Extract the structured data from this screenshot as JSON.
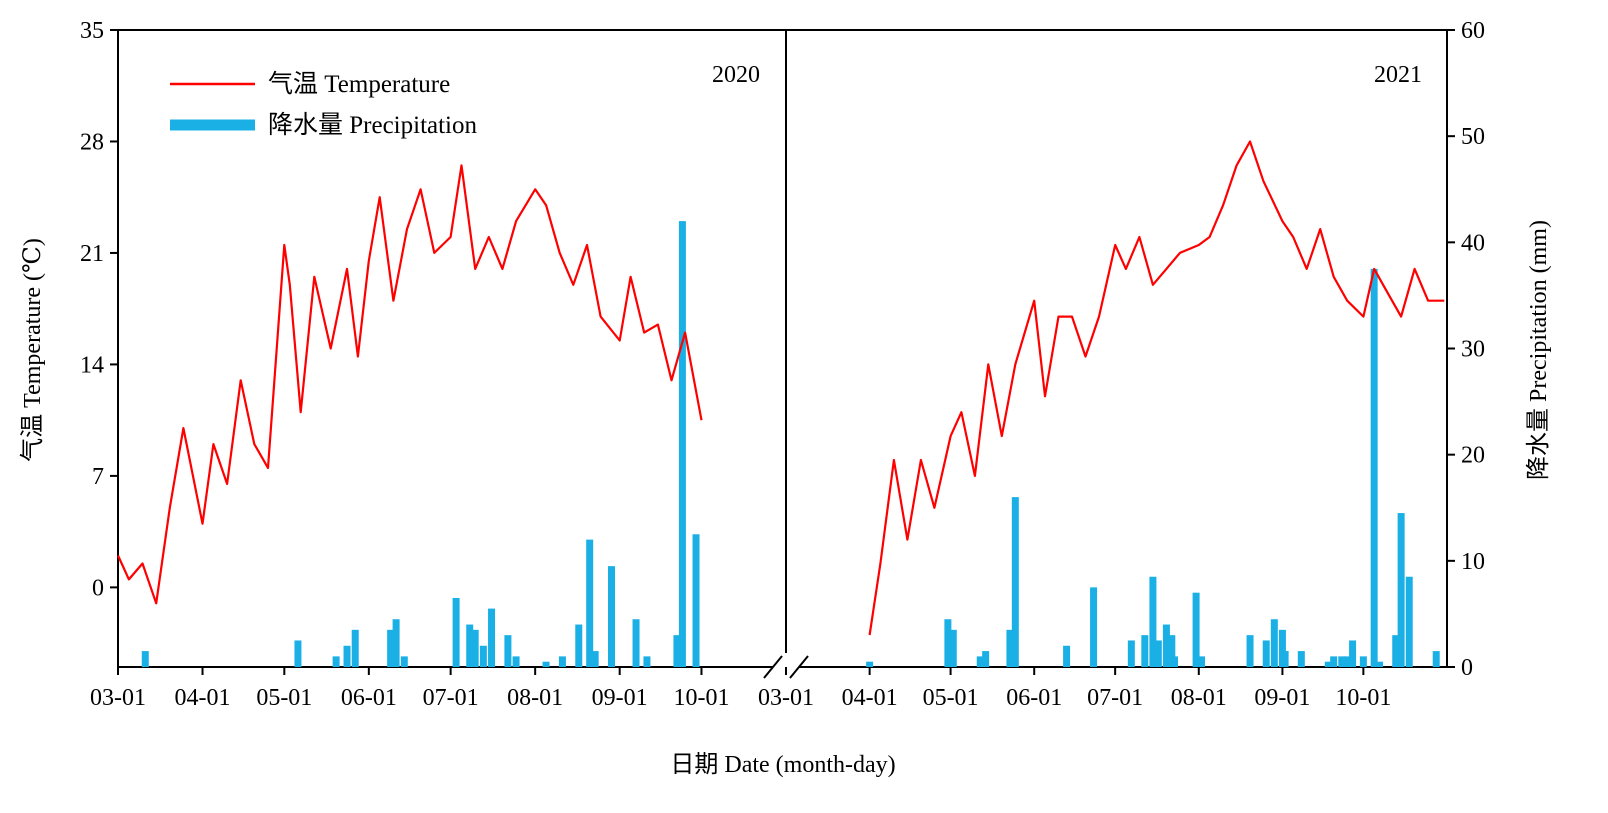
{
  "chart_data": {
    "type": "line",
    "title": "",
    "xlabel": "日期 Date (month-day)",
    "ylabel_left": "气温 Temperature (℃)",
    "ylabel_right": "降水量 Precipitation (mm)",
    "ylim_left": [
      -5,
      35
    ],
    "ylim_right": [
      0,
      60
    ],
    "yticks_left": [
      "0",
      "7",
      "14",
      "21",
      "28",
      "35"
    ],
    "yticks_right": [
      "0",
      "10",
      "20",
      "30",
      "40",
      "50",
      "60"
    ],
    "legend": {
      "placement": "top-left",
      "temperature": "气温 Temperature",
      "precipitation": "降水量 Precipitation"
    },
    "colors": {
      "temperature": "#ff0000",
      "precipitation": "#1ab0e6"
    },
    "axis_break": true,
    "panels": [
      {
        "year": "2020",
        "xticks": [
          "03-01",
          "04-01",
          "05-01",
          "06-01",
          "07-01",
          "08-01",
          "09-01",
          "10-01"
        ],
        "temperature": {
          "name": "气温 Temperature",
          "dates": [
            "03-01",
            "03-05",
            "03-10",
            "03-15",
            "03-20",
            "03-25",
            "04-01",
            "04-05",
            "04-10",
            "04-15",
            "04-20",
            "04-25",
            "05-01",
            "05-03",
            "05-07",
            "05-12",
            "05-18",
            "05-24",
            "05-28",
            "06-01",
            "06-05",
            "06-10",
            "06-15",
            "06-20",
            "06-25",
            "07-01",
            "07-05",
            "07-10",
            "07-15",
            "07-20",
            "07-25",
            "08-01",
            "08-05",
            "08-10",
            "08-15",
            "08-20",
            "08-25",
            "09-01",
            "09-05",
            "09-10",
            "09-15",
            "09-20",
            "09-25",
            "10-01"
          ],
          "values": [
            2,
            0.5,
            1.5,
            -1,
            5,
            10,
            4,
            9,
            6.5,
            13,
            9,
            7.5,
            21.5,
            19,
            11,
            19.5,
            15,
            20,
            14.5,
            20.5,
            24.5,
            18,
            22.5,
            25,
            21,
            22,
            26.5,
            20,
            22,
            20,
            23,
            25,
            24,
            21,
            19,
            21.5,
            17,
            15.5,
            19.5,
            16,
            16.5,
            13,
            16,
            10.5
          ]
        },
        "precipitation": {
          "name": "降水量 Precipitation",
          "dates": [
            "03-11",
            "05-06",
            "05-20",
            "05-24",
            "05-27",
            "06-09",
            "06-11",
            "06-14",
            "07-03",
            "07-08",
            "07-10",
            "07-13",
            "07-16",
            "07-22",
            "07-25",
            "08-05",
            "08-11",
            "08-17",
            "08-21",
            "08-23",
            "08-29",
            "09-07",
            "09-11",
            "09-22",
            "09-24",
            "09-29"
          ],
          "values": [
            1.5,
            2.5,
            1,
            2,
            3.5,
            3.5,
            4.5,
            1,
            6.5,
            4,
            3.5,
            2,
            5.5,
            3,
            1,
            0.5,
            1,
            4,
            12,
            1.5,
            9.5,
            4.5,
            1,
            3,
            42,
            12.5
          ]
        }
      },
      {
        "year": "2021",
        "xticks": [
          "03-01",
          "04-01",
          "05-01",
          "06-01",
          "07-01",
          "08-01",
          "09-01",
          "10-01"
        ],
        "temperature": {
          "name": "气温 Temperature",
          "dates": [
            "04-01",
            "04-05",
            "04-10",
            "04-15",
            "04-20",
            "04-25",
            "05-01",
            "05-05",
            "05-10",
            "05-15",
            "05-20",
            "05-25",
            "06-01",
            "06-05",
            "06-10",
            "06-15",
            "06-20",
            "06-25",
            "07-01",
            "07-05",
            "07-10",
            "07-15",
            "07-20",
            "07-25",
            "08-01",
            "08-05",
            "08-10",
            "08-15",
            "08-20",
            "08-25",
            "09-01",
            "09-05",
            "09-10",
            "09-15",
            "09-20",
            "09-25",
            "10-01",
            "10-05",
            "10-10",
            "10-15",
            "10-20",
            "10-25",
            "10-31"
          ],
          "values": [
            -3,
            1.5,
            8,
            3,
            8,
            5,
            9.5,
            11,
            7,
            14,
            9.5,
            14,
            18,
            12,
            17,
            17,
            14.5,
            17,
            21.5,
            20,
            22,
            19,
            20,
            21,
            21.5,
            22,
            24,
            26.5,
            28,
            25.5,
            23,
            22,
            20,
            22.5,
            19.5,
            18,
            17,
            20,
            18.5,
            17,
            20,
            18,
            18
          ]
        },
        "precipitation": {
          "name": "降水量 Precipitation",
          "dates": [
            "04-01",
            "04-30",
            "05-02",
            "05-12",
            "05-14",
            "05-23",
            "05-25",
            "06-13",
            "06-23",
            "07-07",
            "07-12",
            "07-15",
            "07-17",
            "07-20",
            "07-22",
            "07-23",
            "07-31",
            "08-02",
            "08-20",
            "08-26",
            "08-29",
            "09-01",
            "09-02",
            "09-08",
            "09-18",
            "09-20",
            "09-23",
            "09-25",
            "09-27",
            "10-01",
            "10-05",
            "10-07",
            "10-13",
            "10-15",
            "10-18",
            "10-28"
          ],
          "values": [
            0.5,
            4.5,
            3.5,
            1,
            1.5,
            3.5,
            16,
            2,
            7.5,
            2.5,
            3,
            8.5,
            2.5,
            4,
            3,
            1,
            7,
            1,
            3,
            2.5,
            4.5,
            3.5,
            1.5,
            1.5,
            0.5,
            1,
            1,
            1,
            2.5,
            1,
            37.5,
            0.5,
            3,
            14.5,
            8.5,
            1.5
          ]
        }
      }
    ]
  }
}
